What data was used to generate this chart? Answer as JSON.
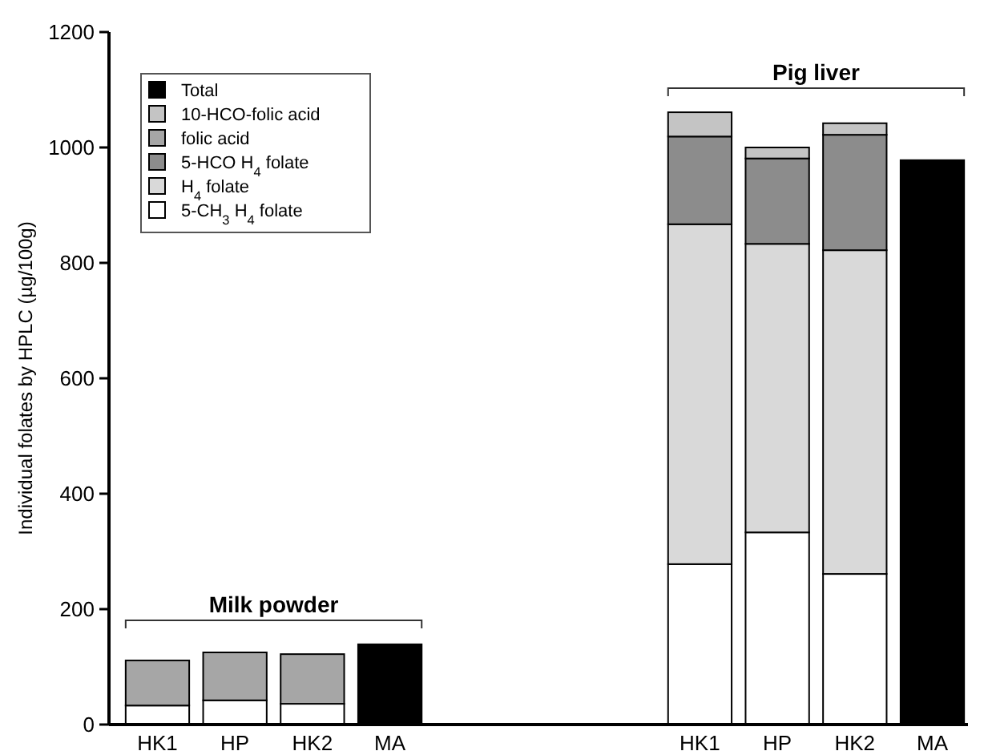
{
  "chart_data": {
    "type": "bar",
    "stacked": true,
    "ylabel": "Individual folates by HPLC (µg/100g)",
    "categories": [
      "HK1",
      "HP",
      "HK2",
      "MA",
      null,
      null,
      null,
      "HK1",
      "HP",
      "HK2",
      "MA"
    ],
    "series": [
      {
        "name": "5-CH$_{3}$ H$_{4}$ folate",
        "color": "#ffffff",
        "values": [
          33,
          42,
          36,
          null,
          null,
          null,
          null,
          278,
          333,
          261,
          null
        ]
      },
      {
        "name": "H$_{4}$ folate",
        "color": "#d9d9d9",
        "values": [
          null,
          null,
          null,
          null,
          null,
          null,
          null,
          589,
          500,
          561,
          null
        ]
      },
      {
        "name": "5-HCO H$_{4}$ folate",
        "color": "#8c8c8c",
        "values": [
          null,
          null,
          null,
          null,
          null,
          null,
          null,
          152,
          148,
          200,
          null
        ]
      },
      {
        "name": "folic acid",
        "color": "#a6a6a6",
        "values": [
          78,
          83,
          86,
          null,
          null,
          null,
          null,
          null,
          null,
          null,
          null
        ]
      },
      {
        "name": "10-HCO-folic acid",
        "color": "#c4c4c4",
        "values": [
          null,
          null,
          null,
          null,
          null,
          null,
          null,
          42,
          19,
          20,
          null
        ]
      },
      {
        "name": "Total",
        "color": "#000000",
        "values": [
          null,
          null,
          null,
          139,
          null,
          null,
          null,
          null,
          null,
          null,
          978
        ]
      }
    ],
    "annotations": [
      "Milk powder",
      "Pig liver"
    ],
    "ylim": [
      0,
      1200
    ],
    "yticks": [
      0,
      200,
      400,
      600,
      800,
      1000,
      1200
    ],
    "legend": "top left"
  }
}
